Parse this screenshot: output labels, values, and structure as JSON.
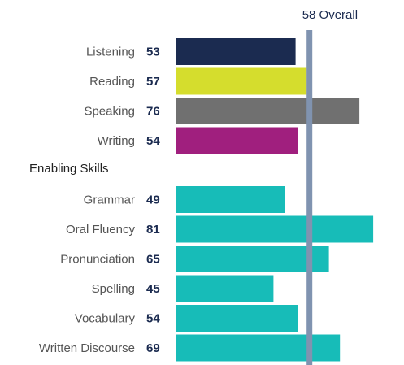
{
  "chart_data": {
    "type": "bar",
    "orientation": "horizontal",
    "overall": {
      "label": "58 Overall",
      "value": 58,
      "color": "#8093b0"
    },
    "groups": [
      {
        "heading": "",
        "items": [
          {
            "label": "Listening",
            "value": 53,
            "color": "#1b2b50"
          },
          {
            "label": "Reading",
            "value": 57,
            "color": "#d5dd2d"
          },
          {
            "label": "Speaking",
            "value": 76,
            "color": "#707070"
          },
          {
            "label": "Writing",
            "value": 54,
            "color": "#a01f7e"
          }
        ]
      },
      {
        "heading": "Enabling Skills",
        "items": [
          {
            "label": "Grammar",
            "value": 49,
            "color": "#17bcb8"
          },
          {
            "label": "Oral Fluency",
            "value": 81,
            "color": "#17bcb8"
          },
          {
            "label": "Pronunciation",
            "value": 65,
            "color": "#17bcb8"
          },
          {
            "label": "Spelling",
            "value": 45,
            "color": "#17bcb8"
          },
          {
            "label": "Vocabulary",
            "value": 54,
            "color": "#17bcb8"
          },
          {
            "label": "Written Discourse",
            "value": 69,
            "color": "#17bcb8"
          }
        ]
      }
    ],
    "xlim": [
      10,
      90
    ],
    "grid": false,
    "legend": "none"
  }
}
